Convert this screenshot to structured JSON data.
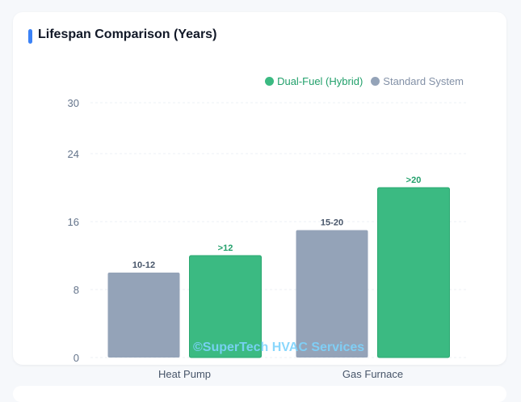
{
  "chart_data": {
    "type": "bar",
    "title": "Lifespan Comparison (Years)",
    "categories": [
      "Heat Pump",
      "Gas Furnace"
    ],
    "series": [
      {
        "name": "Standard System",
        "values": [
          10,
          15
        ],
        "labels": [
          "10-12",
          "15-20"
        ],
        "color": "#94a3b8",
        "label_color": "#475569"
      },
      {
        "name": "Dual-Fuel (Hybrid)",
        "values": [
          12,
          20
        ],
        "labels": [
          ">12",
          ">20"
        ],
        "color": "#3bba82",
        "label_color": "#22a06b"
      }
    ],
    "legend_order": [
      "Dual-Fuel (Hybrid)",
      "Standard System"
    ],
    "yticks": [
      0,
      8,
      16,
      24,
      30
    ],
    "ylim": [
      0,
      30
    ],
    "grid": true,
    "legend": "top-right"
  },
  "accent_color": "#3b82f6",
  "watermark": "©SuperTech HVAC Services"
}
